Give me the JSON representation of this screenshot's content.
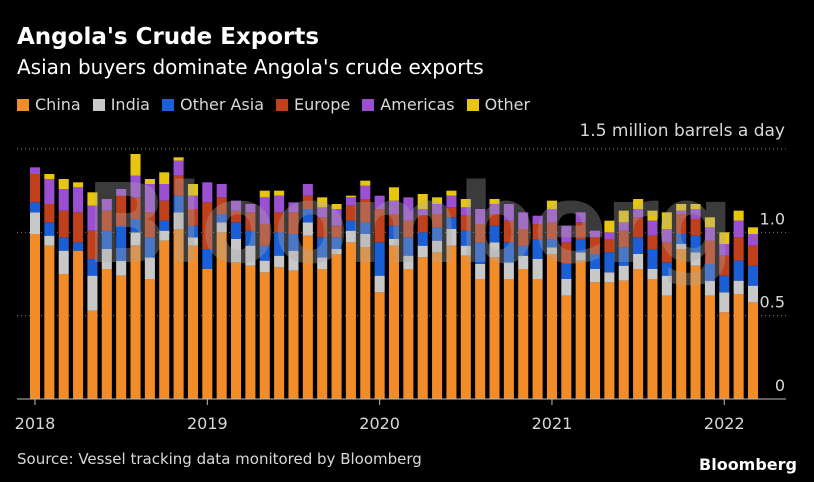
{
  "header": {
    "title": "Angola's Crude Exports",
    "subtitle": "Asian buyers dominate Angola's crude exports"
  },
  "legend": [
    {
      "label": "China",
      "color": "#f28c28"
    },
    {
      "label": "India",
      "color": "#c8c8c8"
    },
    {
      "label": "Other Asia",
      "color": "#1a5fd6"
    },
    {
      "label": "Europe",
      "color": "#c0401c"
    },
    {
      "label": "Americas",
      "color": "#9b4fd1"
    },
    {
      "label": "Other",
      "color": "#e8c60e"
    }
  ],
  "unit_label": "1.5 million barrels a day",
  "source": "Source: Vessel tracking data monitored by Bloomberg",
  "brand": "Bloomberg",
  "watermark": "Bloomberg",
  "chart_data": {
    "type": "bar",
    "stacked": true,
    "ylim": [
      0,
      1.5
    ],
    "y_ticks": [
      0,
      0.5,
      1.0
    ],
    "y_tick_labels": [
      "0",
      "0.5",
      "1.0"
    ],
    "x_tick_labels": [
      "2018",
      "2019",
      "2020",
      "2021",
      "2022"
    ],
    "grid": true,
    "legend_position": "top-left",
    "categories": [
      "2018-01",
      "2018-02",
      "2018-03",
      "2018-04",
      "2018-05",
      "2018-06",
      "2018-07",
      "2018-08",
      "2018-09",
      "2018-10",
      "2018-11",
      "2018-12",
      "2019-01",
      "2019-02",
      "2019-03",
      "2019-04",
      "2019-05",
      "2019-06",
      "2019-07",
      "2019-08",
      "2019-09",
      "2019-10",
      "2019-11",
      "2019-12",
      "2020-01",
      "2020-02",
      "2020-03",
      "2020-04",
      "2020-05",
      "2020-06",
      "2020-07",
      "2020-08",
      "2020-09",
      "2020-10",
      "2020-11",
      "2020-12",
      "2021-01",
      "2021-02",
      "2021-03",
      "2021-04",
      "2021-05",
      "2021-06",
      "2021-07",
      "2021-08",
      "2021-09",
      "2021-10",
      "2021-11",
      "2021-12",
      "2022-01",
      "2022-02",
      "2022-03"
    ],
    "series": [
      {
        "name": "China",
        "values": [
          0.99,
          0.92,
          0.75,
          0.89,
          0.53,
          0.78,
          0.74,
          0.92,
          0.72,
          0.95,
          1.02,
          0.92,
          0.78,
          1.0,
          0.82,
          0.8,
          0.76,
          0.79,
          0.77,
          0.98,
          0.78,
          0.87,
          0.94,
          0.91,
          0.64,
          0.92,
          0.78,
          0.85,
          0.88,
          0.92,
          0.86,
          0.72,
          0.85,
          0.72,
          0.78,
          0.72,
          0.87,
          0.62,
          0.83,
          0.7,
          0.7,
          0.71,
          0.78,
          0.72,
          0.62,
          0.9,
          0.8,
          0.62,
          0.52,
          0.63,
          0.58
        ]
      },
      {
        "name": "India",
        "values": [
          0.13,
          0.06,
          0.14,
          0.0,
          0.21,
          0.12,
          0.09,
          0.08,
          0.13,
          0.06,
          0.1,
          0.05,
          0.0,
          0.06,
          0.14,
          0.12,
          0.07,
          0.07,
          0.12,
          0.08,
          0.07,
          0.03,
          0.07,
          0.08,
          0.1,
          0.04,
          0.08,
          0.07,
          0.07,
          0.1,
          0.06,
          0.09,
          0.09,
          0.1,
          0.08,
          0.12,
          0.04,
          0.1,
          0.05,
          0.08,
          0.06,
          0.09,
          0.09,
          0.06,
          0.12,
          0.03,
          0.08,
          0.09,
          0.12,
          0.08,
          0.1
        ]
      },
      {
        "name": "Other Asia",
        "values": [
          0.06,
          0.08,
          0.08,
          0.05,
          0.1,
          0.11,
          0.21,
          0.08,
          0.12,
          0.06,
          0.1,
          0.07,
          0.12,
          0.05,
          0.1,
          0.09,
          0.09,
          0.14,
          0.1,
          0.08,
          0.12,
          0.07,
          0.06,
          0.07,
          0.2,
          0.08,
          0.11,
          0.08,
          0.08,
          0.07,
          0.09,
          0.13,
          0.1,
          0.12,
          0.06,
          0.12,
          0.05,
          0.09,
          0.08,
          0.09,
          0.12,
          0.11,
          0.1,
          0.12,
          0.08,
          0.06,
          0.1,
          0.1,
          0.1,
          0.12,
          0.12
        ]
      },
      {
        "name": "Europe",
        "values": [
          0.17,
          0.11,
          0.16,
          0.18,
          0.17,
          0.12,
          0.18,
          0.13,
          0.15,
          0.12,
          0.12,
          0.1,
          0.28,
          0.1,
          0.07,
          0.11,
          0.13,
          0.12,
          0.13,
          0.08,
          0.12,
          0.07,
          0.09,
          0.14,
          0.2,
          0.07,
          0.1,
          0.1,
          0.08,
          0.06,
          0.09,
          0.11,
          0.07,
          0.13,
          0.1,
          0.09,
          0.1,
          0.13,
          0.1,
          0.1,
          0.08,
          0.1,
          0.12,
          0.08,
          0.12,
          0.12,
          0.1,
          0.14,
          0.12,
          0.14,
          0.12
        ]
      },
      {
        "name": "Americas",
        "values": [
          0.04,
          0.15,
          0.13,
          0.15,
          0.15,
          0.07,
          0.04,
          0.13,
          0.17,
          0.1,
          0.09,
          0.08,
          0.12,
          0.08,
          0.06,
          0.05,
          0.16,
          0.1,
          0.06,
          0.07,
          0.06,
          0.1,
          0.05,
          0.08,
          0.08,
          0.08,
          0.14,
          0.04,
          0.06,
          0.07,
          0.05,
          0.09,
          0.06,
          0.1,
          0.1,
          0.05,
          0.08,
          0.1,
          0.06,
          0.04,
          0.04,
          0.05,
          0.05,
          0.09,
          0.08,
          0.02,
          0.06,
          0.08,
          0.07,
          0.1,
          0.07
        ]
      },
      {
        "name": "Other",
        "values": [
          0.0,
          0.03,
          0.06,
          0.03,
          0.08,
          0.0,
          0.0,
          0.13,
          0.03,
          0.07,
          0.02,
          0.07,
          0.0,
          0.0,
          0.0,
          0.0,
          0.04,
          0.03,
          0.0,
          0.0,
          0.06,
          0.03,
          0.01,
          0.03,
          0.0,
          0.08,
          0.0,
          0.09,
          0.04,
          0.03,
          0.05,
          0.0,
          0.03,
          0.0,
          0.0,
          0.0,
          0.05,
          0.0,
          0.0,
          0.0,
          0.07,
          0.07,
          0.06,
          0.06,
          0.1,
          0.04,
          0.03,
          0.06,
          0.07,
          0.06,
          0.04
        ]
      }
    ]
  }
}
